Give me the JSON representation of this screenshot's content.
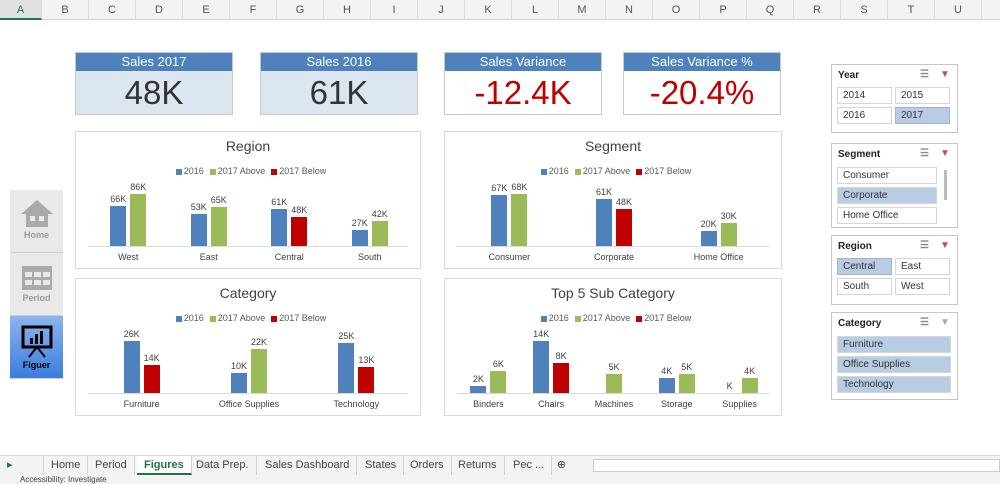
{
  "columns": [
    "A",
    "B",
    "C",
    "D",
    "E",
    "F",
    "G",
    "H",
    "I",
    "J",
    "K",
    "L",
    "M",
    "N",
    "O",
    "P",
    "Q",
    "R",
    "S",
    "T",
    "U"
  ],
  "selected_column": "A",
  "kpis": [
    {
      "label": "Sales 2017",
      "value": "48K",
      "style": "blue"
    },
    {
      "label": "Sales 2016",
      "value": "61K",
      "style": "blue"
    },
    {
      "label": "Sales Variance",
      "value": "-12.4K",
      "style": "red"
    },
    {
      "label": "Sales Variance %",
      "value": "-20.4%",
      "style": "red"
    }
  ],
  "colors": {
    "y2016": "#4f81bd",
    "above": "#9bbb59",
    "below": "#c00000",
    "kpi_header": "#4f81bd",
    "accent": "#217346"
  },
  "legend": {
    "s1": "2016",
    "s2": "2017 Above",
    "s3": "2017 Below"
  },
  "chart_data": [
    {
      "type": "bar",
      "title": "Region",
      "categories": [
        "West",
        "East",
        "Central",
        "South"
      ],
      "series": [
        {
          "name": "2016",
          "values": [
            66,
            53,
            61,
            27
          ]
        },
        {
          "name": "2017 Above",
          "values": [
            86,
            65,
            null,
            42
          ]
        },
        {
          "name": "2017 Below",
          "values": [
            null,
            null,
            48,
            null
          ]
        }
      ],
      "labels": [
        [
          "66K",
          "86K"
        ],
        [
          "53K",
          "65K"
        ],
        [
          "61K",
          "48K"
        ],
        [
          "27K",
          "42K"
        ]
      ],
      "unit": "K"
    },
    {
      "type": "bar",
      "title": "Segment",
      "categories": [
        "Consumer",
        "Corporate",
        "Home Office"
      ],
      "series": [
        {
          "name": "2016",
          "values": [
            67,
            61,
            20
          ]
        },
        {
          "name": "2017 Above",
          "values": [
            68,
            null,
            30
          ]
        },
        {
          "name": "2017 Below",
          "values": [
            null,
            48,
            null
          ]
        }
      ],
      "labels": [
        [
          "67K",
          "68K"
        ],
        [
          "61K",
          "48K"
        ],
        [
          "20K",
          "30K"
        ]
      ],
      "unit": "K"
    },
    {
      "type": "bar",
      "title": "Category",
      "categories": [
        "Furniture",
        "Office Supplies",
        "Technology"
      ],
      "series": [
        {
          "name": "2016",
          "values": [
            26,
            10,
            25
          ]
        },
        {
          "name": "2017 Above",
          "values": [
            null,
            22,
            null
          ]
        },
        {
          "name": "2017 Below",
          "values": [
            14,
            null,
            13
          ]
        }
      ],
      "labels": [
        [
          "26K",
          "14K"
        ],
        [
          "10K",
          "22K"
        ],
        [
          "25K",
          "13K"
        ]
      ],
      "unit": "K"
    },
    {
      "type": "bar",
      "title": "Top 5 Sub Category",
      "categories": [
        "Binders",
        "Chairs",
        "Machines",
        "Storage",
        "Supplies"
      ],
      "series": [
        {
          "name": "2016",
          "values": [
            2,
            14,
            null,
            4,
            0
          ]
        },
        {
          "name": "2017 Above",
          "values": [
            6,
            null,
            5,
            5,
            4
          ]
        },
        {
          "name": "2017 Below",
          "values": [
            null,
            8,
            null,
            null,
            null
          ]
        }
      ],
      "labels": [
        [
          "2K",
          "6K"
        ],
        [
          "14K",
          "8K"
        ],
        [
          "",
          "5K"
        ],
        [
          "4K",
          "5K"
        ],
        [
          "K",
          "4K"
        ]
      ],
      "unit": "K"
    }
  ],
  "nav": [
    {
      "label": "Home"
    },
    {
      "label": "Period"
    },
    {
      "label": "Figuer"
    }
  ],
  "slicers": {
    "year": {
      "title": "Year",
      "items": [
        "2014",
        "2015",
        "2016",
        "2017"
      ],
      "selected": [
        "2017"
      ]
    },
    "segment": {
      "title": "Segment",
      "items": [
        "Consumer",
        "Corporate",
        "Home Office"
      ],
      "selected": [
        "Corporate"
      ]
    },
    "region": {
      "title": "Region",
      "items": [
        "Central",
        "East",
        "South",
        "West"
      ],
      "selected": [
        "Central"
      ]
    },
    "category": {
      "title": "Category",
      "items": [
        "Furniture",
        "Office Supplies",
        "Technology"
      ],
      "selected": [
        "Furniture",
        "Office Supplies",
        "Technology"
      ]
    }
  },
  "sheet_tabs": [
    "Home",
    "Period",
    "Figures",
    "Data Prep.",
    "Sales Dashboard",
    "States",
    "Orders",
    "Returns",
    "Pec ..."
  ],
  "active_tab": "Figures",
  "status": "Accessibility: Investigate"
}
